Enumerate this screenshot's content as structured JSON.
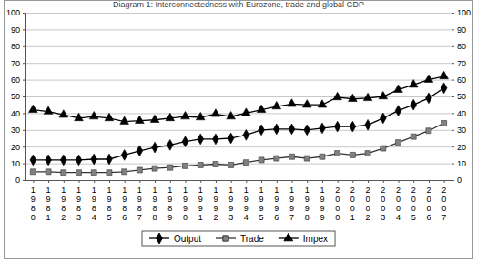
{
  "chart_data": {
    "type": "line",
    "title": "Diagram 1: Interconnectedness with Eurozone, trade and global GDP",
    "categories": [
      "1980",
      "1981",
      "1982",
      "1983",
      "1984",
      "1985",
      "1986",
      "1987",
      "1988",
      "1989",
      "1990",
      "1991",
      "1992",
      "1993",
      "1994",
      "1995",
      "1996",
      "1997",
      "1998",
      "1999",
      "2000",
      "2001",
      "2002",
      "2003",
      "2004",
      "2005",
      "2006",
      "2007"
    ],
    "series": [
      {
        "name": "Output",
        "color": "#000000",
        "marker": "diamond",
        "values": [
          12,
          12,
          12,
          12,
          12.5,
          12.5,
          15,
          17.5,
          19.5,
          21,
          23,
          24.5,
          24.5,
          25,
          27,
          30,
          30.5,
          30.5,
          30,
          31,
          32,
          32,
          33,
          37,
          41.5,
          45,
          49,
          55
        ]
      },
      {
        "name": "Trade",
        "color": "#808080",
        "marker": "square",
        "values": [
          5,
          5,
          4.5,
          4.5,
          4.5,
          4.5,
          5,
          6,
          7,
          7.5,
          8.5,
          9,
          9.5,
          9,
          10.5,
          12,
          13,
          14,
          13,
          14,
          16,
          15,
          16,
          19,
          22.5,
          26,
          29.5,
          34
        ]
      },
      {
        "name": "Impex",
        "color": "#000000",
        "marker": "triangle",
        "values": [
          42,
          41,
          39,
          37,
          38,
          37,
          35,
          35.5,
          36,
          37,
          38,
          37.5,
          39.5,
          38,
          40,
          42,
          44,
          45.5,
          45,
          45,
          49.5,
          48.5,
          49,
          50,
          54,
          57,
          60,
          62
        ]
      }
    ],
    "ylim": [
      0,
      100
    ],
    "yticks": [
      0,
      10,
      20,
      30,
      40,
      50,
      60,
      70,
      80,
      90,
      100
    ],
    "grid": true,
    "legend": "bottom"
  }
}
